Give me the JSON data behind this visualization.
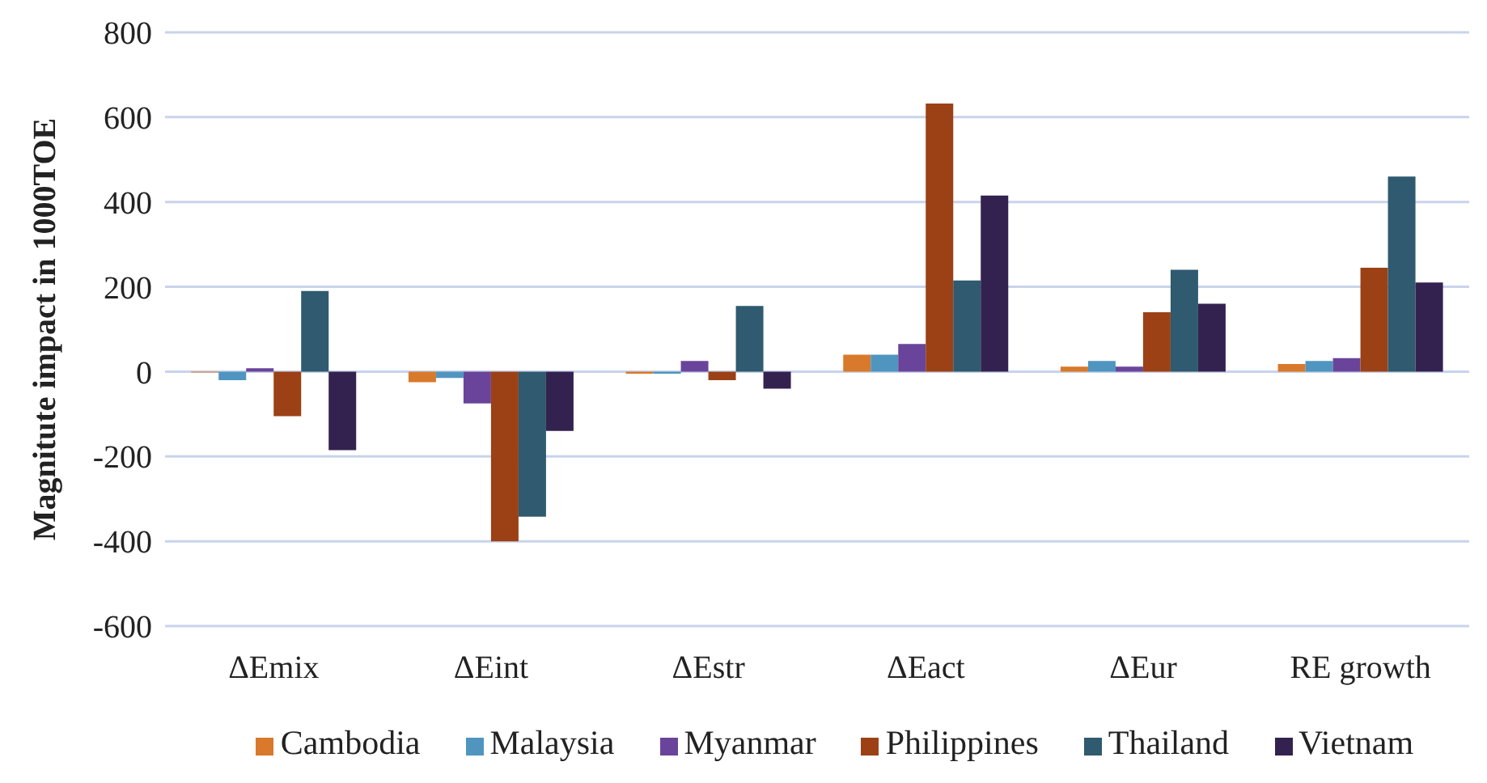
{
  "chart_data": {
    "type": "bar",
    "ylabel": "Magnitute impact in 1000TOE",
    "categories": [
      "ΔEmix",
      "ΔEint",
      "ΔEstr",
      "ΔEact",
      "ΔEur",
      "RE growth"
    ],
    "series": [
      {
        "name": "Cambodia",
        "color": "#d9792b",
        "values": [
          -2,
          -25,
          -5,
          40,
          12,
          18
        ]
      },
      {
        "name": "Malaysia",
        "color": "#4f95c0",
        "values": [
          -20,
          -15,
          -5,
          40,
          25,
          25
        ]
      },
      {
        "name": "Myanmar",
        "color": "#6a449a",
        "values": [
          8,
          -75,
          25,
          65,
          12,
          32
        ]
      },
      {
        "name": "Philippines",
        "color": "#9b4115",
        "values": [
          -105,
          -400,
          -20,
          632,
          140,
          245
        ]
      },
      {
        "name": "Thailand",
        "color": "#2f5a70",
        "values": [
          190,
          -342,
          155,
          215,
          240,
          460
        ]
      },
      {
        "name": "Vietnam",
        "color": "#33224f",
        "values": [
          -185,
          -140,
          -40,
          415,
          160,
          210
        ]
      }
    ],
    "ylim": [
      -600,
      800
    ],
    "yticks": [
      -600,
      -400,
      -200,
      0,
      200,
      400,
      600,
      800
    ],
    "grid": "y",
    "legend": "bottom"
  }
}
